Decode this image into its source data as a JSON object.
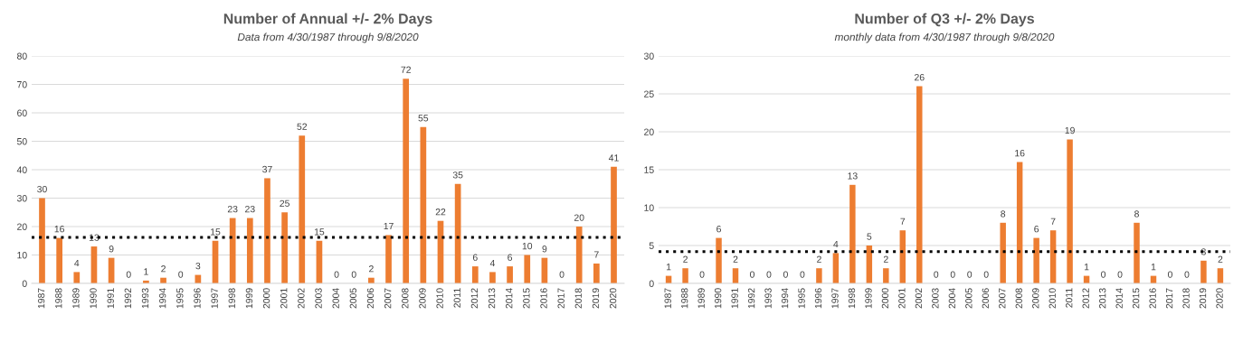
{
  "chart_data": [
    {
      "type": "bar",
      "title": "Number of Annual +/- 2% Days",
      "subtitle": "Data from 4/30/1987 through 9/8/2020",
      "categories": [
        "1987",
        "1988",
        "1989",
        "1990",
        "1991",
        "1992",
        "1993",
        "1994",
        "1995",
        "1996",
        "1997",
        "1998",
        "1999",
        "2000",
        "2001",
        "2002",
        "2003",
        "2004",
        "2005",
        "2006",
        "2007",
        "2008",
        "2009",
        "2010",
        "2011",
        "2012",
        "2013",
        "2014",
        "2015",
        "2016",
        "2017",
        "2018",
        "2019",
        "2020"
      ],
      "values": [
        30,
        16,
        4,
        13,
        9,
        0,
        1,
        2,
        0,
        3,
        15,
        23,
        23,
        37,
        25,
        52,
        15,
        0,
        0,
        2,
        17,
        72,
        55,
        22,
        35,
        6,
        4,
        6,
        10,
        9,
        0,
        20,
        7,
        41
      ],
      "color": "#ed7d31",
      "ylim": [
        0,
        80
      ],
      "yticks": [
        0,
        10,
        20,
        30,
        40,
        50,
        60,
        70,
        80
      ],
      "grid": "y",
      "data_labels": true,
      "ref_lines": [
        {
          "axis": "y",
          "value": 16.2,
          "color": "#000000",
          "line_style": "dotted"
        }
      ]
    },
    {
      "type": "bar",
      "title": "Number of Q3 +/- 2% Days",
      "subtitle": "monthly data from 4/30/1987 through 9/8/2020",
      "categories": [
        "1987",
        "1988",
        "1989",
        "1990",
        "1991",
        "1992",
        "1993",
        "1994",
        "1995",
        "1996",
        "1997",
        "1998",
        "1999",
        "2000",
        "2001",
        "2002",
        "2003",
        "2004",
        "2005",
        "2006",
        "2007",
        "2008",
        "2009",
        "2010",
        "2011",
        "2012",
        "2013",
        "2014",
        "2015",
        "2016",
        "2017",
        "2018",
        "2019",
        "2020"
      ],
      "values": [
        1,
        2,
        0,
        6,
        2,
        0,
        0,
        0,
        0,
        2,
        4,
        13,
        5,
        2,
        7,
        26,
        0,
        0,
        0,
        0,
        8,
        16,
        6,
        7,
        19,
        1,
        0,
        0,
        8,
        1,
        0,
        0,
        3,
        2
      ],
      "color": "#ed7d31",
      "ylim": [
        0,
        30
      ],
      "yticks": [
        0,
        5,
        10,
        15,
        20,
        25,
        30
      ],
      "grid": "y",
      "data_labels": true,
      "ref_lines": [
        {
          "axis": "y",
          "value": 4.2,
          "color": "#000000",
          "line_style": "dotted"
        }
      ]
    }
  ]
}
